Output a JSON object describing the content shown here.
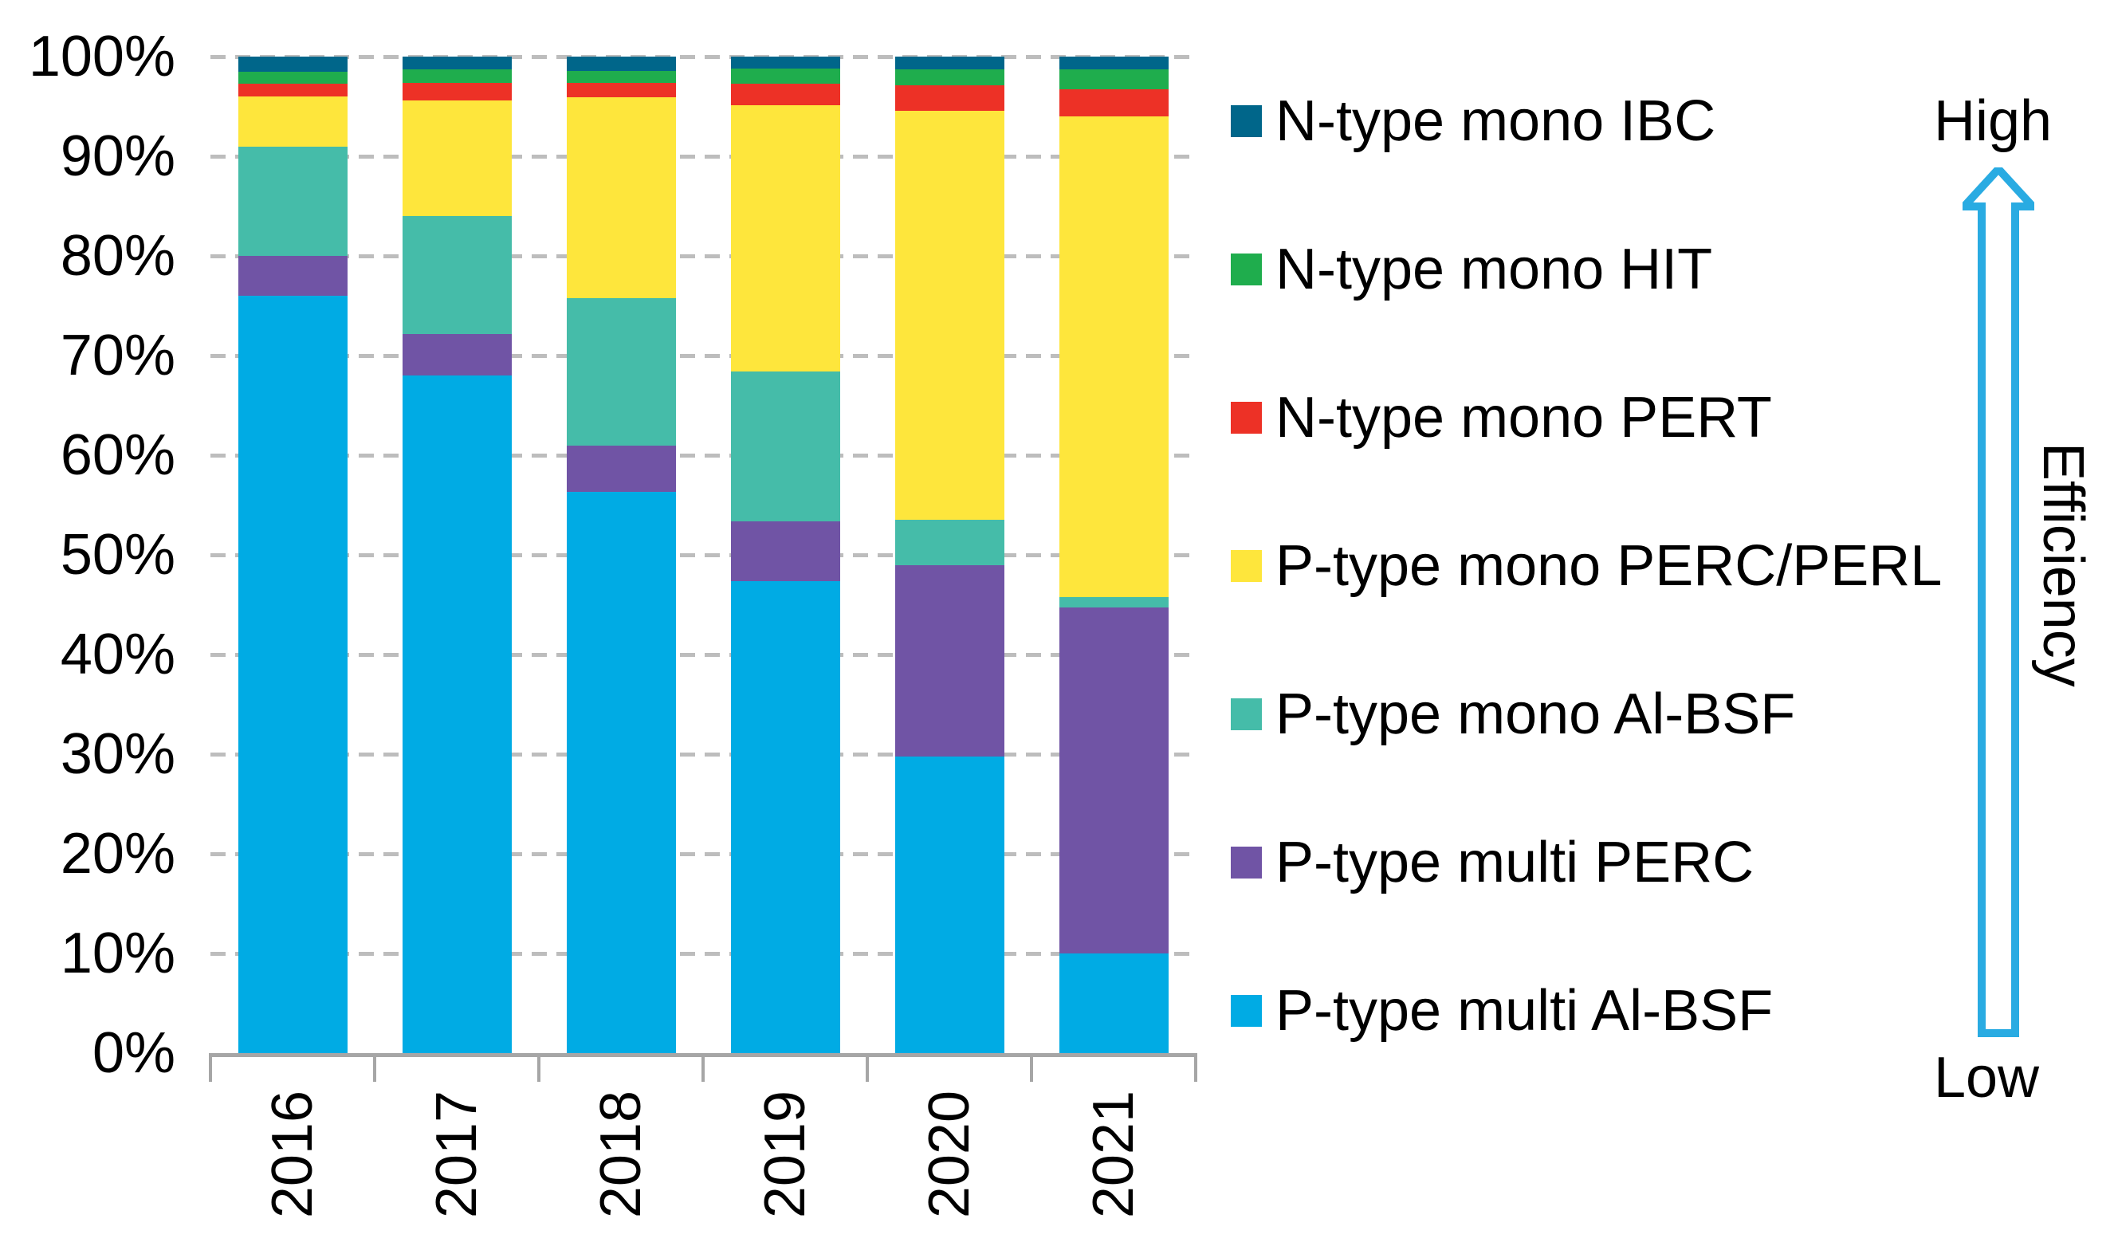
{
  "chart_data": {
    "type": "bar",
    "stacked": true,
    "unit": "%",
    "title": "",
    "xlabel": "",
    "ylabel": "",
    "ylim": [
      0,
      100
    ],
    "grid": "horizontal-dashed",
    "legend_position": "right",
    "categories": [
      "2016",
      "2017",
      "2018",
      "2019",
      "2020",
      "2021"
    ],
    "yticks": [
      "0%",
      "10%",
      "20%",
      "30%",
      "40%",
      "50%",
      "60%",
      "70%",
      "80%",
      "90%",
      "100%"
    ],
    "series": [
      {
        "name": "P-type multi Al-BSF",
        "color": "#00ABE4",
        "values": [
          76,
          68,
          56.3,
          47.4,
          29.8,
          10
        ]
      },
      {
        "name": "P-type multi PERC",
        "color": "#7054A5",
        "values": [
          4,
          4.2,
          4.7,
          6,
          19.2,
          34.7
        ]
      },
      {
        "name": "P-type mono Al-BSF",
        "color": "#45BCA9",
        "values": [
          11,
          11.8,
          14.8,
          15,
          4.5,
          1.1
        ]
      },
      {
        "name": "P-type mono PERC/PERL",
        "color": "#FEE63C",
        "values": [
          5,
          11.6,
          20.1,
          26.7,
          41.1,
          48.2
        ]
      },
      {
        "name": "N-type mono PERT",
        "color": "#ED3126",
        "values": [
          1.3,
          1.8,
          1.5,
          2.2,
          2.5,
          2.7
        ]
      },
      {
        "name": "N-type mono HIT",
        "color": "#1FAD4D",
        "values": [
          1.2,
          1.3,
          1.2,
          1.5,
          1.6,
          2
        ]
      },
      {
        "name": "N-type mono IBC",
        "color": "#00668A",
        "values": [
          1.5,
          1.3,
          1.4,
          1.2,
          1.3,
          1.3
        ]
      }
    ]
  },
  "legend": {
    "items": [
      {
        "label": "N-type mono IBC",
        "color": "#00668A"
      },
      {
        "label": "N-type mono HIT",
        "color": "#1FAD4D"
      },
      {
        "label": "N-type mono PERT",
        "color": "#ED3126"
      },
      {
        "label": "P-type mono PERC/PERL",
        "color": "#FEE63C"
      },
      {
        "label": "P-type mono Al-BSF",
        "color": "#45BCA9"
      },
      {
        "label": "P-type multi PERC",
        "color": "#7054A5"
      },
      {
        "label": "P-type multi Al-BSF",
        "color": "#00ABE4"
      }
    ]
  },
  "annotations": {
    "high_label": "High",
    "low_label": "Low",
    "axis_label": "Efficiency",
    "arrow_icon": "up-arrow-icon",
    "arrow_color": "#29ABE2"
  },
  "colors": {
    "gridline": "#BDBDBD",
    "axis": "#A6A6A6",
    "text": "#000000",
    "background": "#FFFFFF"
  }
}
